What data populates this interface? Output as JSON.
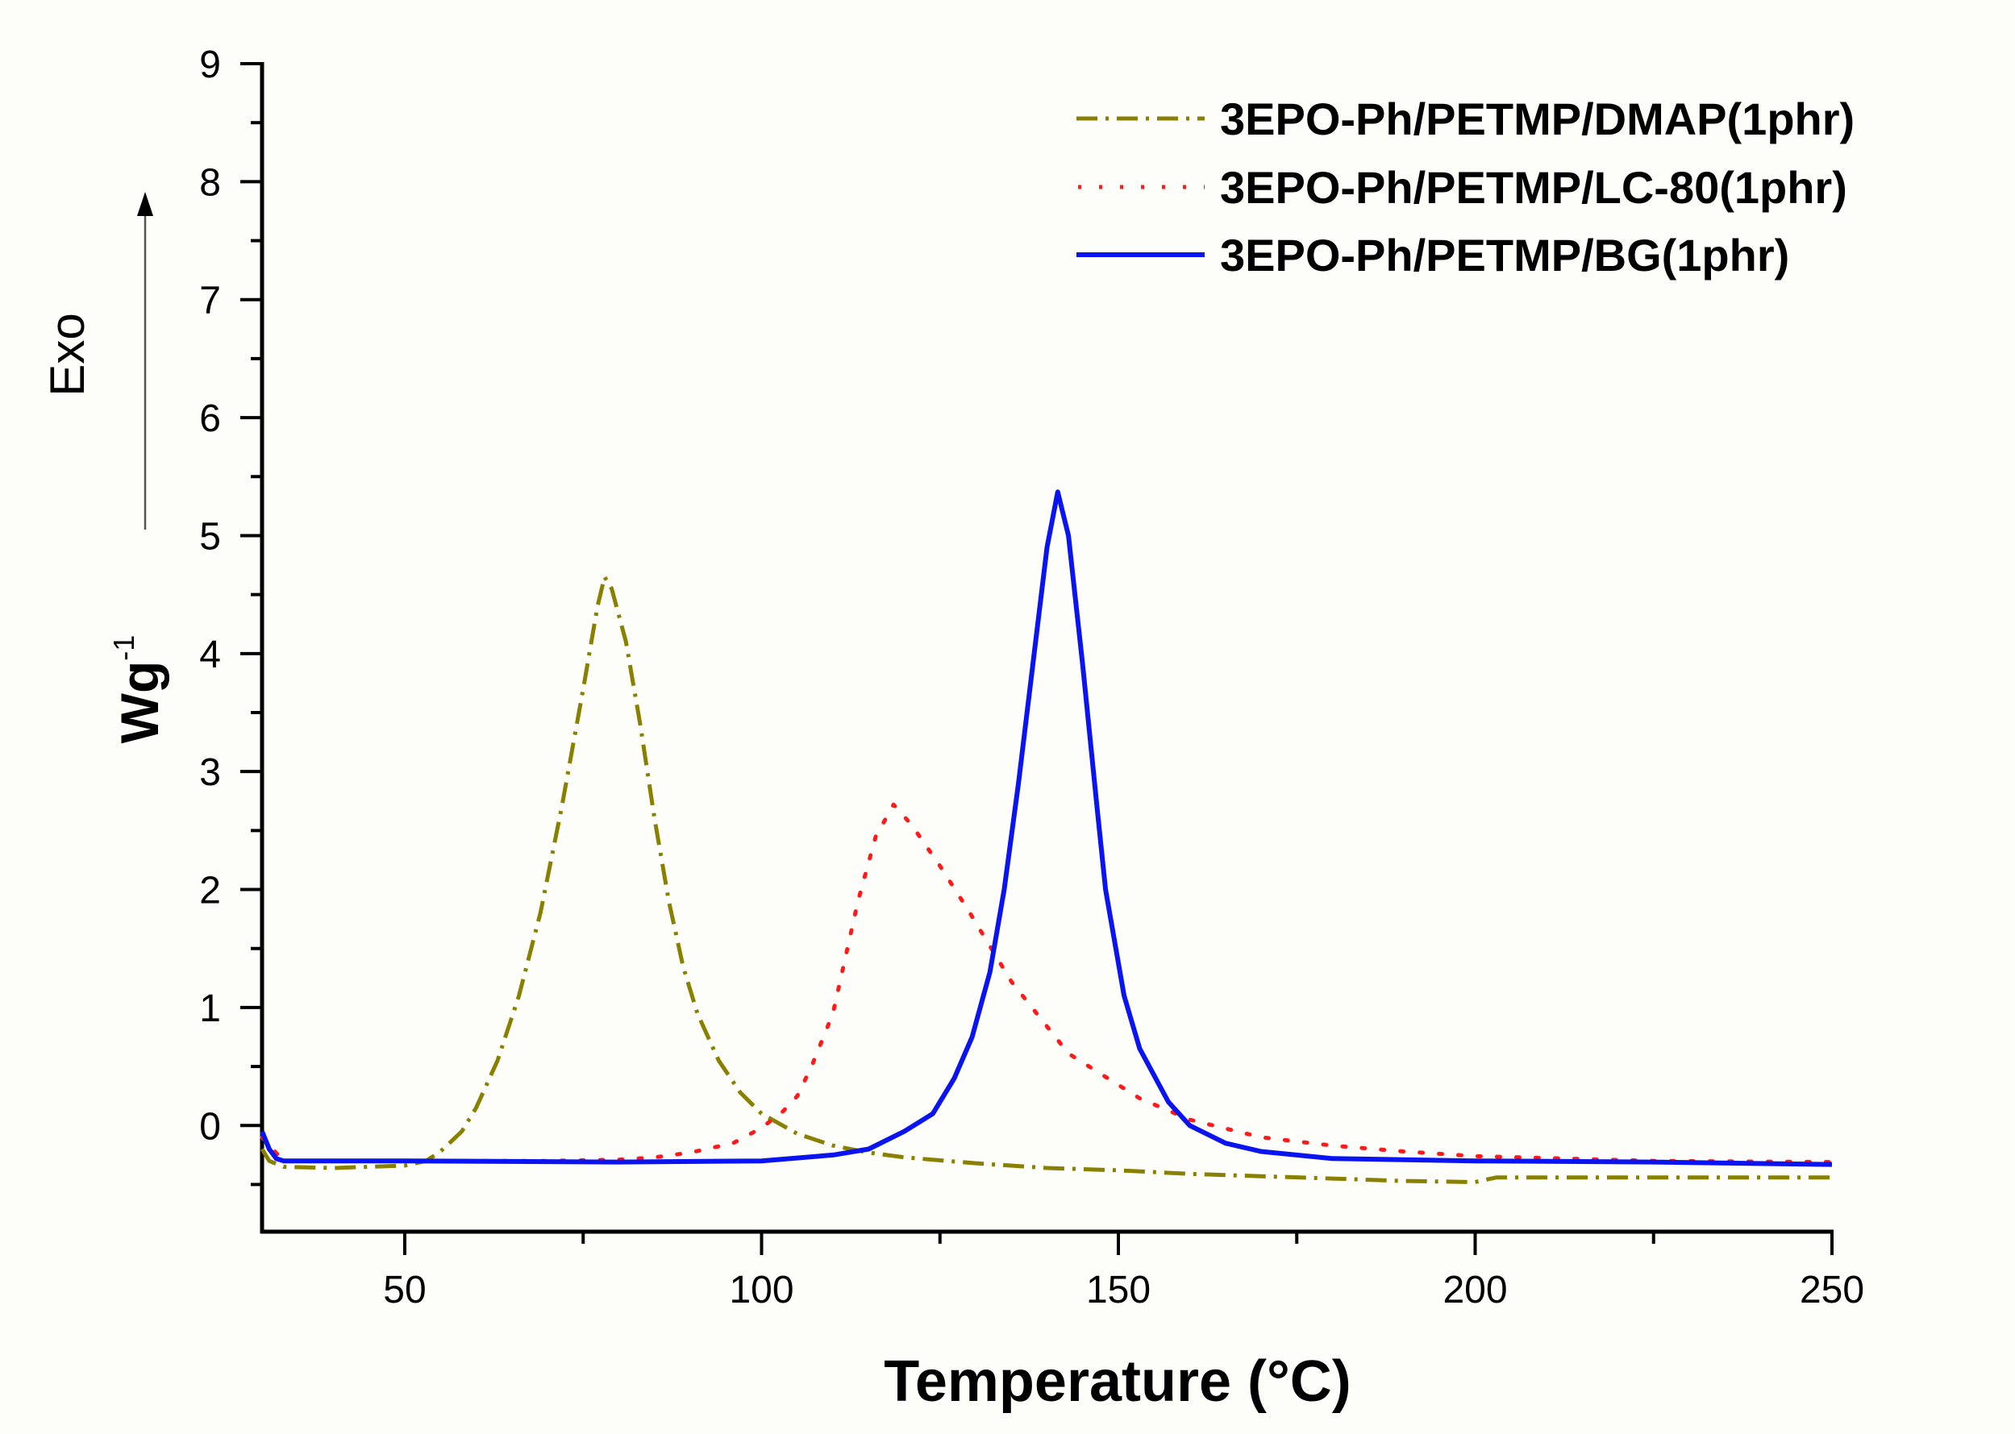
{
  "chart_data": {
    "type": "line",
    "title": "",
    "xlabel": "Temperature (°C)",
    "ylabel": "Wg-1",
    "ylabel_main": "Wg",
    "ylabel_sup": "-1",
    "exo_label": "Exo",
    "exo_arrow": "up",
    "xlim": [
      30,
      250
    ],
    "ylim": [
      -0.9,
      9
    ],
    "xticks": [
      50,
      100,
      150,
      200,
      250
    ],
    "xminor": [
      75,
      125,
      175,
      225
    ],
    "yticks": [
      0,
      1,
      2,
      3,
      4,
      5,
      6,
      7,
      8,
      9
    ],
    "yminor": [
      -0.5,
      0.5,
      1.5,
      2.5,
      3.5,
      4.5,
      5.5,
      6.5,
      7.5,
      8.5
    ],
    "grid": false,
    "legend_position": "upper right",
    "series": [
      {
        "name": "3EPO-Ph/PETMP/DMAP(1phr)",
        "color": "#8a8000",
        "style": "dashdot",
        "x": [
          30,
          31,
          33,
          40,
          50,
          53,
          55,
          58,
          60,
          63,
          66,
          69,
          72,
          75,
          77,
          78,
          79,
          81,
          83,
          85,
          87,
          89,
          91,
          94,
          97,
          100,
          105,
          110,
          115,
          120,
          130,
          140,
          150,
          160,
          170,
          180,
          190,
          200,
          203,
          210,
          230,
          250
        ],
        "y": [
          -0.2,
          -0.3,
          -0.35,
          -0.36,
          -0.34,
          -0.3,
          -0.22,
          -0.05,
          0.15,
          0.55,
          1.1,
          1.8,
          2.7,
          3.7,
          4.4,
          4.65,
          4.55,
          4.1,
          3.4,
          2.6,
          1.9,
          1.35,
          0.95,
          0.55,
          0.28,
          0.1,
          -0.07,
          -0.17,
          -0.23,
          -0.27,
          -0.32,
          -0.36,
          -0.38,
          -0.41,
          -0.43,
          -0.45,
          -0.47,
          -0.48,
          -0.44,
          -0.44,
          -0.44,
          -0.44
        ]
      },
      {
        "name": "3EPO-Ph/PETMP/LC-80(1phr)",
        "color": "#ff1a1a",
        "style": "dotted",
        "x": [
          30,
          33,
          50,
          70,
          80,
          85,
          90,
          96,
          100,
          103,
          105,
          107,
          110,
          113.5,
          116,
          118.5,
          121,
          125,
          129,
          135,
          143,
          153,
          160,
          170,
          180,
          190,
          200,
          225,
          250
        ],
        "y": [
          -0.1,
          -0.3,
          -0.3,
          -0.3,
          -0.29,
          -0.27,
          -0.23,
          -0.15,
          -0.02,
          0.12,
          0.25,
          0.5,
          0.95,
          1.9,
          2.45,
          2.72,
          2.55,
          2.2,
          1.82,
          1.22,
          0.61,
          0.23,
          0.05,
          -0.1,
          -0.17,
          -0.22,
          -0.26,
          -0.3,
          -0.31
        ]
      },
      {
        "name": "3EPO-Ph/PETMP/BG(1phr)",
        "color": "#0a14f0",
        "style": "solid",
        "x": [
          30,
          31,
          32,
          33,
          50,
          80,
          100,
          110,
          115,
          120,
          124,
          127,
          129.5,
          132,
          134,
          136,
          138,
          140,
          141.5,
          143,
          145,
          147,
          148.2,
          150.8,
          153,
          157,
          160,
          165,
          170,
          180,
          200,
          225,
          250
        ],
        "y": [
          -0.05,
          -0.2,
          -0.28,
          -0.3,
          -0.3,
          -0.31,
          -0.3,
          -0.25,
          -0.2,
          -0.05,
          0.1,
          0.4,
          0.75,
          1.3,
          2.0,
          2.9,
          3.9,
          4.9,
          5.37,
          5.0,
          3.9,
          2.7,
          2.0,
          1.1,
          0.65,
          0.2,
          0.0,
          -0.15,
          -0.22,
          -0.28,
          -0.3,
          -0.31,
          -0.33
        ]
      }
    ]
  },
  "legend": {
    "items": [
      {
        "label": "3EPO-Ph/PETMP/DMAP(1phr)"
      },
      {
        "label": "3EPO-Ph/PETMP/LC-80(1phr)"
      },
      {
        "label": "3EPO-Ph/PETMP/BG(1phr)"
      }
    ]
  },
  "axes": {
    "x_title": "Temperature (°C)",
    "y_title_main": "Wg",
    "y_title_sup": "-1",
    "exo": "Exo",
    "x_tick_labels": [
      "50",
      "100",
      "150",
      "200",
      "250"
    ],
    "y_tick_labels": [
      "0",
      "1",
      "2",
      "3",
      "4",
      "5",
      "6",
      "7",
      "8",
      "9"
    ]
  },
  "colors": {
    "background": "#fdfdfa",
    "axis": "#000000",
    "dmap": "#8a8000",
    "lc80": "#ff1a1a",
    "bg": "#0a14f0",
    "exo_arrow": "#555555"
  }
}
